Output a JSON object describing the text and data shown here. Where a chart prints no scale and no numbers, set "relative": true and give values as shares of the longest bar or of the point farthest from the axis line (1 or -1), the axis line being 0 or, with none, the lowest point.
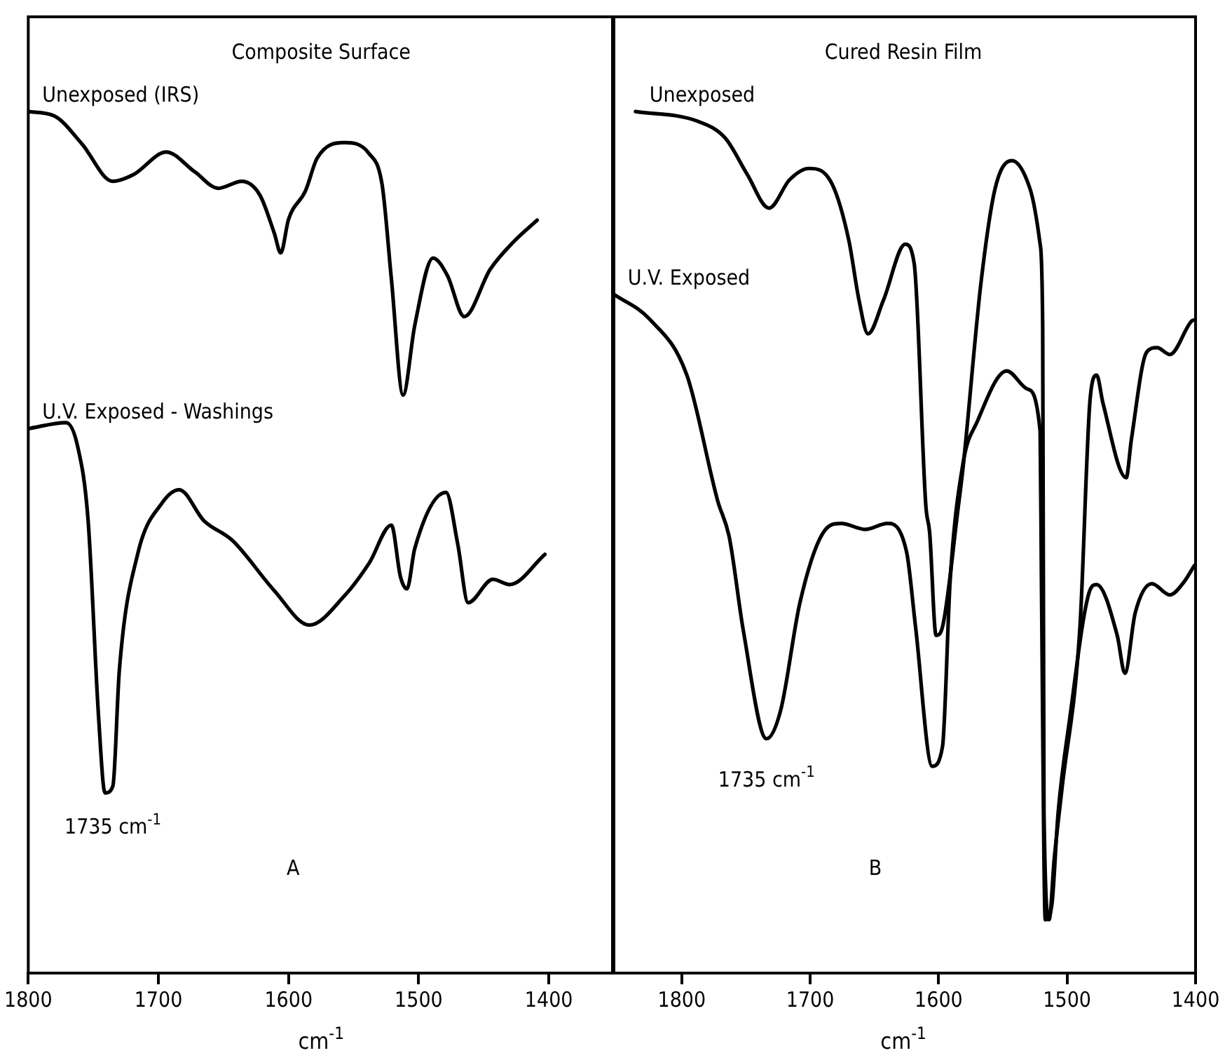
{
  "chart_data": [
    {
      "type": "line",
      "title": "Composite Surface",
      "xlabel": "cm$^{-1}$",
      "relative": true,
      "xlim": [
        1800,
        1350
      ],
      "xticks": [
        1800,
        1700,
        1600,
        1500,
        1400
      ],
      "tick_labels": "x",
      "grid": false,
      "legend": false,
      "marker": "none",
      "line_style": "solid",
      "annotations": [
        {
          "text": "1735 cm$^{-1}$",
          "x": 1735,
          "y": 0.217
        },
        "A"
      ],
      "series": [
        {
          "name": "Unexposed (IRS)",
          "color": "#000000",
          "x": [
            1800,
            1780,
            1759,
            1735,
            1719,
            1694,
            1672,
            1654,
            1636,
            1622,
            1611,
            1606,
            1600,
            1587,
            1578,
            1557,
            1538,
            1528,
            1521,
            1512,
            1503,
            1489,
            1478,
            1465,
            1445,
            1427,
            1409
          ],
          "values": [
            1.0,
            0.995,
            0.963,
            0.919,
            0.927,
            0.953,
            0.93,
            0.911,
            0.919,
            0.903,
            0.859,
            0.836,
            0.875,
            0.908,
            0.946,
            0.964,
            0.951,
            0.914,
            0.806,
            0.671,
            0.752,
            0.83,
            0.81,
            0.762,
            0.817,
            0.849,
            0.874
          ]
        },
        {
          "name": "U.V. Exposed - Washings",
          "color": "#000000",
          "x": [
            1800,
            1771,
            1762,
            1754,
            1746,
            1741,
            1735,
            1730,
            1716,
            1697,
            1684,
            1665,
            1643,
            1611,
            1584,
            1557,
            1538,
            1521,
            1514,
            1509,
            1503,
            1479,
            1470,
            1462,
            1443,
            1430,
            1403
          ],
          "values": [
            0.632,
            0.639,
            0.611,
            0.525,
            0.298,
            0.209,
            0.217,
            0.352,
            0.486,
            0.546,
            0.561,
            0.525,
            0.502,
            0.444,
            0.404,
            0.438,
            0.476,
            0.52,
            0.46,
            0.446,
            0.493,
            0.558,
            0.498,
            0.43,
            0.457,
            0.451,
            0.486
          ]
        }
      ]
    },
    {
      "type": "line",
      "title": "Cured Resin Film",
      "xlabel": "cm$^{-1}$",
      "relative": true,
      "xlim": [
        1855,
        1400
      ],
      "xticks": [
        1800,
        1700,
        1600,
        1500,
        1400
      ],
      "tick_labels": "x",
      "grid": false,
      "legend": false,
      "marker": "none",
      "line_style": "solid",
      "annotations": [
        {
          "text": "1735 cm$^{-1}$",
          "x": 1734,
          "y": 0.272
        },
        "B"
      ],
      "series": [
        {
          "name": "Unexposed",
          "color": "#000000",
          "x": [
            1836,
            1788,
            1766,
            1749,
            1732,
            1716,
            1701,
            1683,
            1670,
            1662,
            1655,
            1643,
            1626,
            1619,
            1610,
            1607,
            1602,
            1597,
            1585,
            1581,
            1567,
            1556,
            1543,
            1529,
            1521,
            1519,
            1518,
            1514,
            1510,
            1504,
            1490,
            1482,
            1477,
            1472,
            1454,
            1450,
            1438,
            1430,
            1420,
            1403,
            1401
          ],
          "values": [
            1.0,
            0.989,
            0.969,
            0.927,
            0.888,
            0.921,
            0.934,
            0.916,
            0.851,
            0.781,
            0.742,
            0.781,
            0.846,
            0.823,
            0.543,
            0.511,
            0.392,
            0.402,
            0.538,
            0.587,
            0.802,
            0.911,
            0.943,
            0.911,
            0.846,
            0.749,
            0.186,
            0.062,
            0.133,
            0.214,
            0.402,
            0.668,
            0.694,
            0.661,
            0.575,
            0.619,
            0.721,
            0.726,
            0.718,
            0.757,
            0.758
          ]
        },
        {
          "name": "U.V. Exposed",
          "color": "#000000",
          "x": [
            1853,
            1825,
            1796,
            1772,
            1763,
            1752,
            1734,
            1723,
            1708,
            1690,
            1676,
            1657,
            1640,
            1625,
            1618,
            1605,
            1597,
            1591,
            1581,
            1570,
            1547,
            1531,
            1521,
            1520,
            1517,
            1512,
            1507,
            1498,
            1483,
            1477,
            1461,
            1455,
            1447,
            1434,
            1420,
            1409,
            1401
          ],
          "values": [
            0.788,
            0.759,
            0.694,
            0.548,
            0.506,
            0.397,
            0.272,
            0.305,
            0.43,
            0.511,
            0.522,
            0.515,
            0.522,
            0.489,
            0.402,
            0.24,
            0.263,
            0.457,
            0.592,
            0.64,
            0.699,
            0.678,
            0.629,
            0.457,
            0.062,
            0.078,
            0.186,
            0.295,
            0.441,
            0.451,
            0.392,
            0.348,
            0.418,
            0.452,
            0.439,
            0.454,
            0.473
          ]
        }
      ]
    }
  ]
}
